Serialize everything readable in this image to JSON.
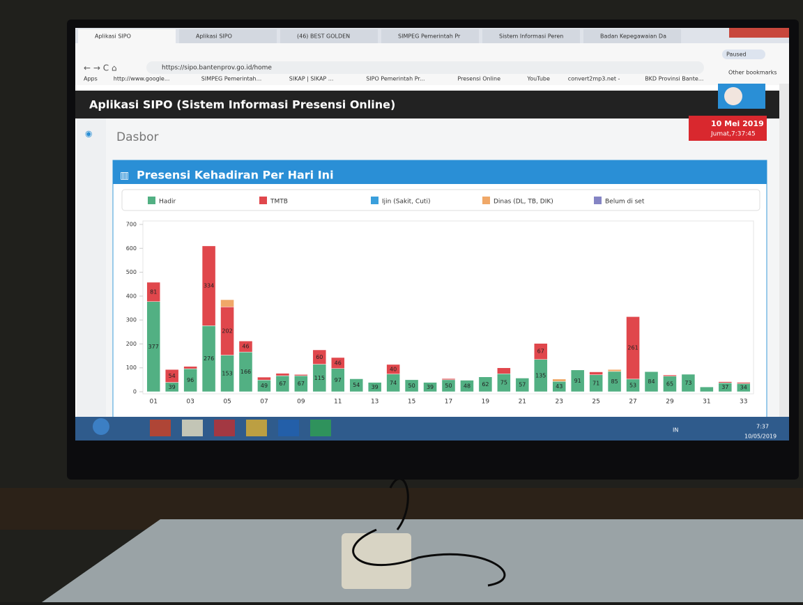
{
  "browser": {
    "tabs": [
      "Aplikasi SIPO",
      "Aplikasi SIPO",
      "(46) BEST GOLDEN",
      "SIMPEG Pemerintah Pr",
      "Sistem Informasi Peren",
      "Badan Kepegawaian Da"
    ],
    "url": "https://sipo.bantenprov.go.id/home",
    "bookmarks": [
      "Apps",
      "http://www.google...",
      "SIMPEG Pemerintah...",
      "SIKAP | SIKAP ...",
      "SIPO Pemerintah Pr...",
      "Presensi Online",
      "YouTube",
      "convert2mp3.net -",
      "BKD Provinsi Bante..."
    ],
    "paused": "Paused",
    "other_bookmarks": "Other bookmarks"
  },
  "app": {
    "title": "Aplikasi SIPO (Sistem Informasi Presensi Online)",
    "page": "Dasbor",
    "date": "10 Mei 2019",
    "time": "Jumat,7:37:45"
  },
  "chart_data": {
    "type": "bar",
    "stacked": true,
    "title": "Presensi Kehadiran Per Hari Ini",
    "categories": [
      "01",
      null,
      "03",
      null,
      "05",
      null,
      "07",
      null,
      "09",
      null,
      "11",
      null,
      "13",
      null,
      "15",
      null,
      "17",
      null,
      "19",
      null,
      "21",
      null,
      "23",
      null,
      "25",
      null,
      "27",
      null,
      "29",
      null,
      "31",
      null,
      "33"
    ],
    "series": [
      {
        "name": "Hadir",
        "color": "#52b083",
        "values": [
          377,
          39,
          96,
          276,
          153,
          166,
          49,
          67,
          67,
          115,
          97,
          54,
          39,
          74,
          50,
          39,
          50,
          48,
          62,
          75,
          57,
          135,
          43,
          91,
          71,
          85,
          53,
          84,
          65,
          73,
          20,
          37,
          34
        ]
      },
      {
        "name": "TMTB",
        "color": "#e0474c",
        "values": [
          81,
          54,
          10,
          334,
          202,
          46,
          12,
          10,
          5,
          60,
          46,
          0,
          0,
          40,
          0,
          0,
          5,
          0,
          0,
          25,
          0,
          67,
          0,
          0,
          12,
          0,
          261,
          0,
          5,
          0,
          0,
          5,
          5
        ]
      },
      {
        "name": "Ijin (Sakit, Cuti)",
        "color": "#3a9fdc",
        "values": [
          0,
          0,
          0,
          0,
          0,
          0,
          0,
          0,
          0,
          0,
          0,
          0,
          0,
          0,
          0,
          0,
          0,
          0,
          0,
          0,
          0,
          0,
          0,
          0,
          0,
          0,
          0,
          0,
          0,
          0,
          0,
          0,
          0
        ]
      },
      {
        "name": "Dinas (DL, TB, DIK)",
        "color": "#f0a868",
        "values": [
          0,
          0,
          0,
          0,
          30,
          0,
          0,
          0,
          0,
          0,
          0,
          0,
          0,
          0,
          0,
          0,
          0,
          0,
          0,
          0,
          0,
          0,
          10,
          0,
          0,
          8,
          0,
          0,
          0,
          0,
          0,
          0,
          0
        ]
      },
      {
        "name": "Belum di set",
        "color": "#8484c4",
        "values": [
          0,
          0,
          0,
          0,
          0,
          0,
          0,
          0,
          0,
          0,
          0,
          0,
          0,
          0,
          0,
          0,
          0,
          0,
          0,
          0,
          0,
          0,
          0,
          0,
          0,
          0,
          0,
          0,
          0,
          0,
          0,
          0,
          0
        ]
      }
    ],
    "ylim": [
      0,
      700
    ],
    "yticks": [
      0,
      100,
      200,
      300,
      400,
      500,
      600,
      700
    ],
    "grid": false
  },
  "taskbar": {
    "lang": "IN",
    "time": "7:37",
    "date": "10/05/2019"
  }
}
